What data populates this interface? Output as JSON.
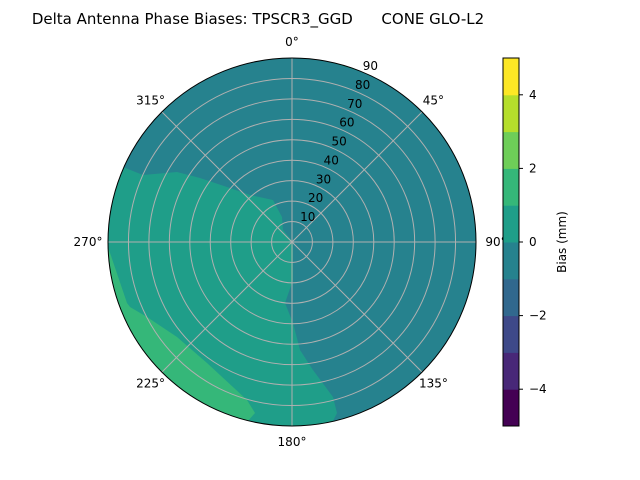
{
  "chart_data": {
    "type": "polar-contour",
    "title": "Delta Antenna Phase Biases: TPSCR3_GGD      CONE GLO-L2",
    "angle_direction": "clockwise",
    "angle_zero": "top",
    "angle_ticks": [
      "0°",
      "45°",
      "90°",
      "135°",
      "180°",
      "225°",
      "270°",
      "315°"
    ],
    "radial_ticks": [
      "10",
      "20",
      "30",
      "40",
      "50",
      "60",
      "70",
      "80",
      "90"
    ],
    "radial_range": [
      0,
      90
    ],
    "grid": true,
    "colorbar": {
      "label": "Bias (mm)",
      "range": [
        -5,
        5
      ],
      "levels": [
        -5,
        -4,
        -3,
        -2,
        -1,
        0,
        1,
        2,
        3,
        4,
        5
      ],
      "tick_labels": [
        "−4",
        "−2",
        "0",
        "2",
        "4"
      ],
      "colors": [
        "#440154",
        "#482878",
        "#3e4989",
        "#31688e",
        "#26828e",
        "#1f9e89",
        "#35b779",
        "#6ece58",
        "#b5de2b",
        "#fde725"
      ]
    },
    "regions": [
      {
        "level_range": [
          -1,
          0
        ],
        "color": "#26828e",
        "extent": "most of the disk: north, east and south-east"
      },
      {
        "level_range": [
          0,
          1
        ],
        "color": "#1f9e89",
        "extent": "west and south-west half, plus thin sliver near 10–30° at horizon"
      },
      {
        "level_range": [
          1,
          2
        ],
        "color": "#35b779",
        "extent": "band along horizon from ~200° to ~265°"
      }
    ]
  }
}
